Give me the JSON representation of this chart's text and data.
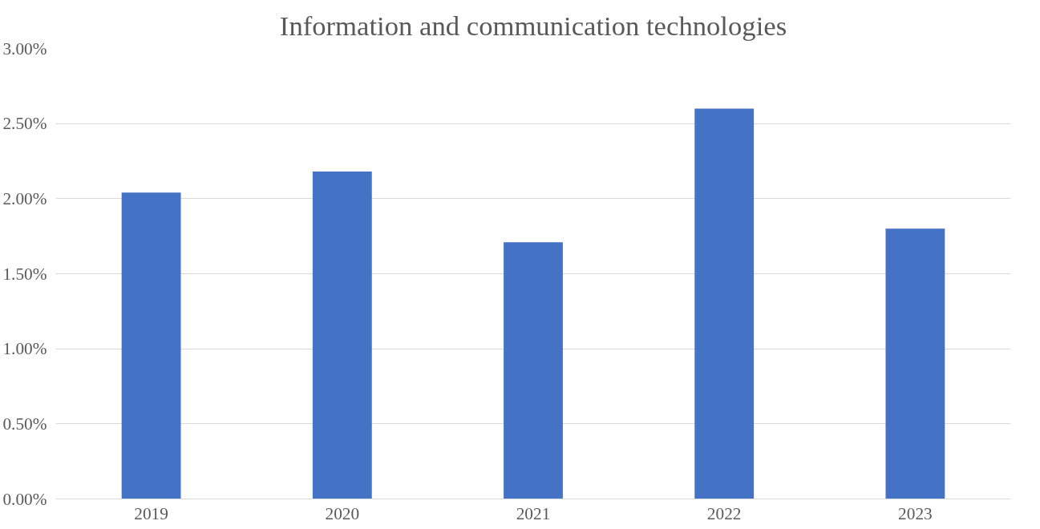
{
  "chart_data": {
    "type": "bar",
    "title": "Information and communication technologies",
    "categories": [
      "2019",
      "2020",
      "2021",
      "2022",
      "2023"
    ],
    "values": [
      2.04,
      2.18,
      1.71,
      2.6,
      1.8
    ],
    "color": "#4472c4",
    "ylim": [
      0,
      3
    ],
    "yticks": [
      {
        "value": 0,
        "label": "0.00%"
      },
      {
        "value": 0.5,
        "label": "0.50%"
      },
      {
        "value": 1,
        "label": "1.00%"
      },
      {
        "value": 1.5,
        "label": "1.50%"
      },
      {
        "value": 2,
        "label": "2.00%"
      },
      {
        "value": 2.5,
        "label": "2.50%"
      },
      {
        "value": 3,
        "label": "3.00%"
      }
    ],
    "grid": "y"
  }
}
